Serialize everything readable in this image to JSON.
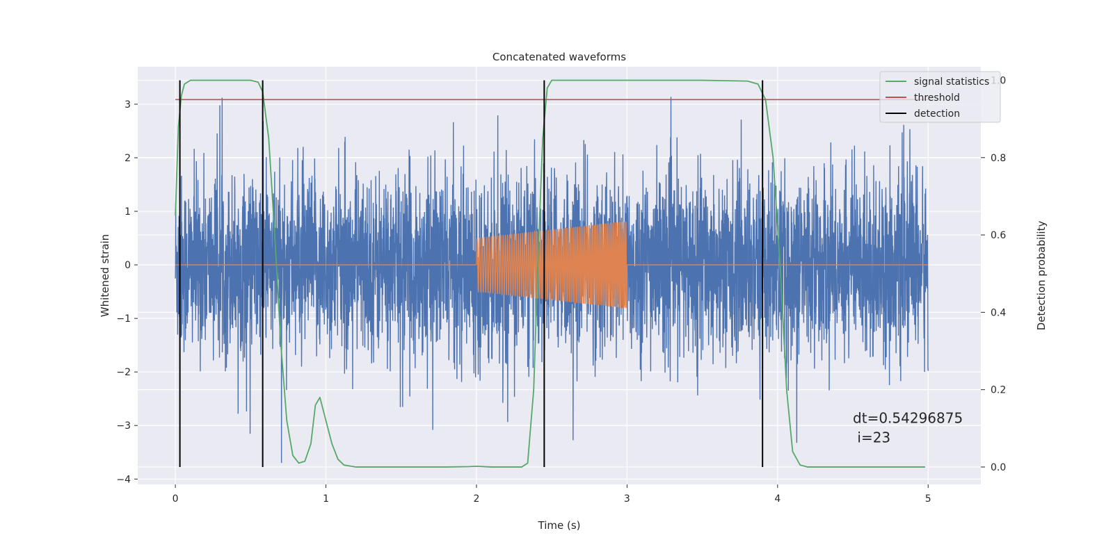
{
  "chart_data": {
    "type": "line",
    "title": "Concatenated waveforms",
    "xlabel": "Time (s)",
    "ylabel_left": "Whitened strain",
    "ylabel_right": "Detection probability",
    "xlim": [
      -0.25,
      5.35
    ],
    "ylim_left": [
      -4.1,
      3.7
    ],
    "ylim_right": [
      -0.045,
      1.035
    ],
    "x_ticks": [
      0,
      1,
      2,
      3,
      4,
      5
    ],
    "y_ticks_left": [
      -4,
      -3,
      -2,
      -1,
      0,
      1,
      2,
      3
    ],
    "y_ticks_right": [
      0.0,
      0.2,
      0.4,
      0.6,
      0.8,
      1.0
    ],
    "x_tick_labels": [
      "0",
      "1",
      "2",
      "3",
      "4",
      "5"
    ],
    "y_tick_labels_left": [
      "−4",
      "−3",
      "−2",
      "−1",
      "0",
      "1",
      "2",
      "3"
    ],
    "y_tick_labels_right": [
      "0.0",
      "0.2",
      "0.4",
      "0.6",
      "0.8",
      "1.0"
    ],
    "grid": true,
    "legend_position": "top-right",
    "legend": [
      {
        "label": "signal statistics",
        "color": "#55a868"
      },
      {
        "label": "threshold",
        "color": "#c44e52"
      },
      {
        "label": "detection",
        "color": "#000000"
      }
    ],
    "colors": {
      "strain": "#4c72b0",
      "injection": "#dd8452",
      "background": "#eaeaf2",
      "grid": "#ffffff"
    },
    "series": [
      {
        "name": "signal statistics",
        "axis": "right",
        "x": [
          0.0,
          0.02,
          0.04,
          0.06,
          0.1,
          0.15,
          0.2,
          0.3,
          0.4,
          0.5,
          0.55,
          0.58,
          0.62,
          0.66,
          0.7,
          0.74,
          0.78,
          0.82,
          0.86,
          0.9,
          0.93,
          0.96,
          1.0,
          1.04,
          1.08,
          1.12,
          1.2,
          1.5,
          1.8,
          1.95,
          2.0,
          2.1,
          2.2,
          2.3,
          2.34,
          2.38,
          2.41,
          2.44,
          2.47,
          2.5,
          2.55,
          2.7,
          3.0,
          3.5,
          3.8,
          3.87,
          3.92,
          3.97,
          4.02,
          4.06,
          4.1,
          4.15,
          4.2,
          4.5,
          4.98
        ],
        "y": [
          0.65,
          0.88,
          0.96,
          0.99,
          1.0,
          1.0,
          1.0,
          1.0,
          1.0,
          1.0,
          0.995,
          0.97,
          0.85,
          0.6,
          0.32,
          0.12,
          0.03,
          0.01,
          0.015,
          0.06,
          0.16,
          0.18,
          0.12,
          0.06,
          0.02,
          0.005,
          0.0,
          0.0,
          0.0,
          0.001,
          0.002,
          0.0,
          0.0,
          0.0,
          0.01,
          0.2,
          0.55,
          0.85,
          0.98,
          1.0,
          1.0,
          1.0,
          1.0,
          1.0,
          0.998,
          0.99,
          0.95,
          0.8,
          0.5,
          0.2,
          0.04,
          0.005,
          0.0,
          0.0,
          0.0
        ]
      },
      {
        "name": "threshold",
        "axis": "right",
        "x": [
          0.0,
          5.0
        ],
        "y": [
          0.95,
          0.95
        ]
      }
    ],
    "detections_x": [
      0.03,
      0.58,
      2.45,
      3.9
    ],
    "strain": {
      "x_range": [
        0.0,
        5.0
      ],
      "noise_sigma": 0.82,
      "y_min": -3.7,
      "y_max": 3.4
    },
    "injection": {
      "x_range": [
        2.0,
        3.0
      ],
      "amplitude_start": 0.5,
      "amplitude_end": 0.82
    },
    "annotation": {
      "line1": "dt=0.54296875",
      "line2": " i=23",
      "anchor_x": 4.5,
      "anchor_y": -2.95
    }
  }
}
